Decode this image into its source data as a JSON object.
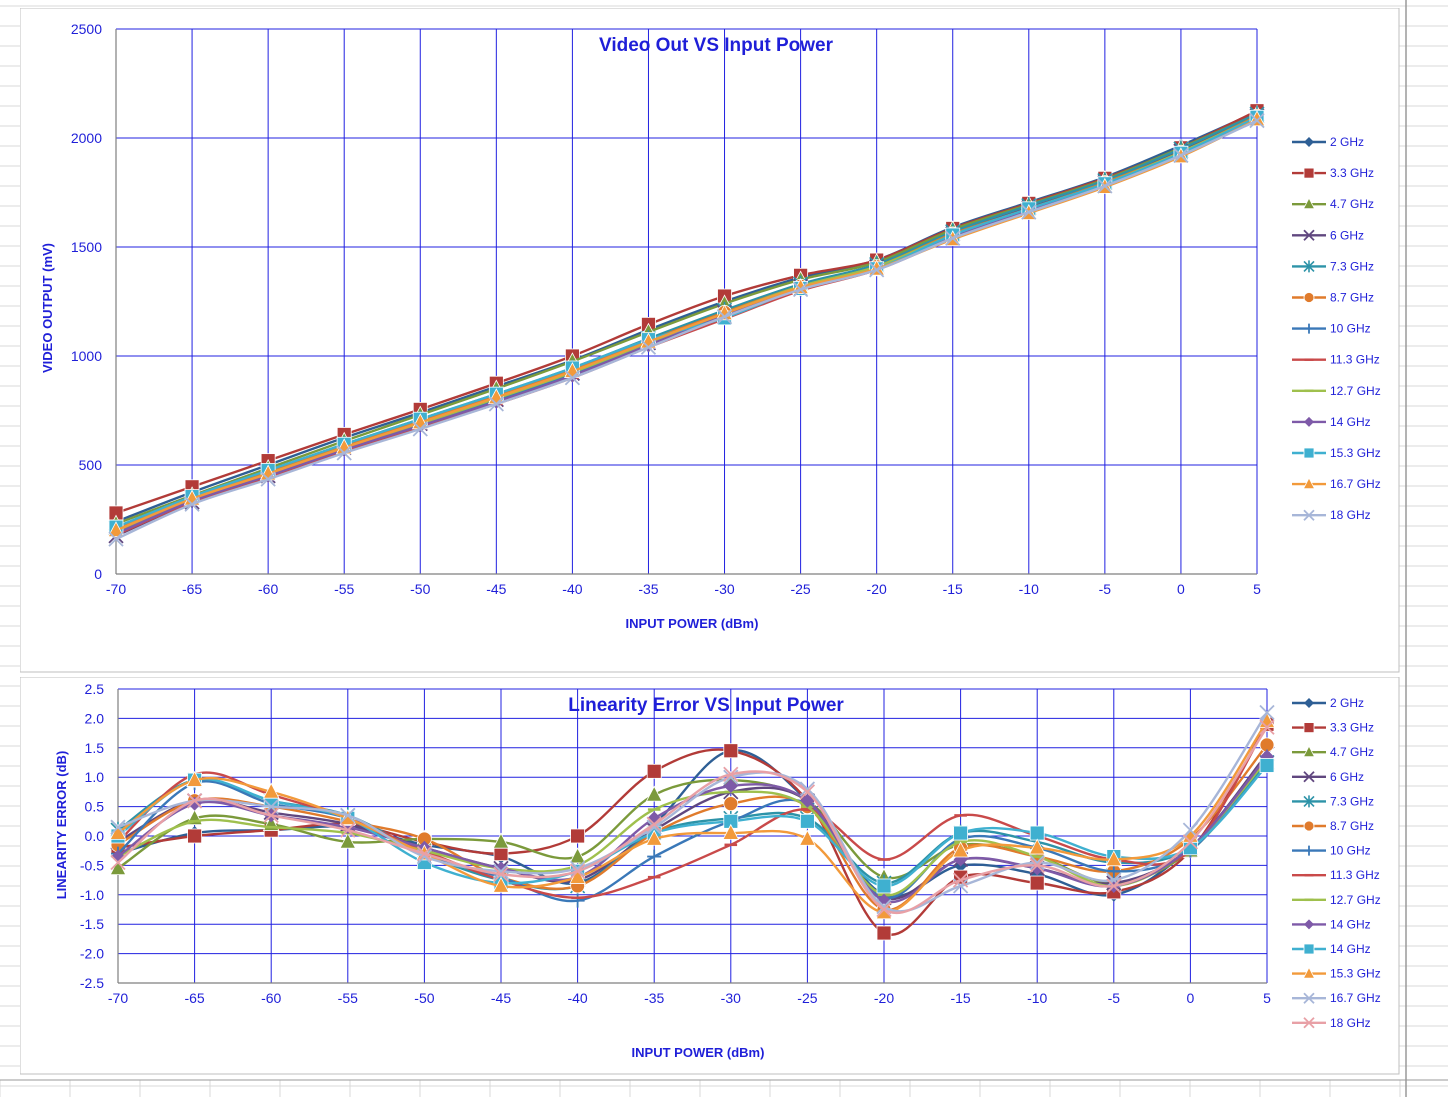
{
  "chart_data": [
    {
      "type": "line",
      "title": "Video Out VS Input Power",
      "xlabel": "INPUT POWER (dBm)",
      "ylabel": "VIDEO OUTPUT (mV)",
      "xlim": [
        -70,
        5
      ],
      "ylim": [
        0,
        2500
      ],
      "grid": true,
      "legend_position": "right",
      "x": [
        -70,
        -65,
        -60,
        -55,
        -50,
        -45,
        -40,
        -35,
        -30,
        -25,
        -20,
        -15,
        -10,
        -5,
        0,
        5
      ],
      "x_ticks": [
        "-70",
        "-65",
        "-60",
        "-55",
        "-50",
        "-45",
        "-40",
        "-35",
        "-30",
        "-25",
        "-20",
        "-15",
        "-10",
        "-5",
        "0",
        "5"
      ],
      "y_ticks": [
        "0",
        "500",
        "1000",
        "1500",
        "2000",
        "2500"
      ],
      "series": [
        {
          "name": "2 GHz",
          "color": "#2e5f95",
          "marker": "diamond",
          "values": [
            240,
            375,
            500,
            625,
            740,
            860,
            980,
            1120,
            1250,
            1360,
            1440,
            1590,
            1705,
            1820,
            1965,
            2120
          ]
        },
        {
          "name": "3.3 GHz",
          "color": "#b23b38",
          "marker": "square",
          "values": [
            280,
            400,
            520,
            640,
            755,
            875,
            1000,
            1145,
            1275,
            1370,
            1440,
            1585,
            1700,
            1815,
            1955,
            2125
          ]
        },
        {
          "name": "4.7 GHz",
          "color": "#7b9a3b",
          "marker": "triangle",
          "values": [
            230,
            360,
            485,
            610,
            730,
            850,
            975,
            1110,
            1240,
            1350,
            1430,
            1580,
            1695,
            1810,
            1955,
            2110
          ]
        },
        {
          "name": "6 GHz",
          "color": "#60477f",
          "marker": "x",
          "values": [
            175,
            330,
            450,
            580,
            690,
            800,
            920,
            1060,
            1200,
            1320,
            1410,
            1560,
            1680,
            1795,
            1940,
            2100
          ]
        },
        {
          "name": "7.3 GHz",
          "color": "#2d93a8",
          "marker": "star",
          "values": [
            210,
            350,
            470,
            595,
            710,
            825,
            945,
            1080,
            1210,
            1330,
            1420,
            1570,
            1690,
            1805,
            1950,
            2110
          ]
        },
        {
          "name": "8.7 GHz",
          "color": "#e07b2c",
          "marker": "circle",
          "values": [
            205,
            345,
            465,
            590,
            700,
            815,
            935,
            1070,
            1200,
            1320,
            1410,
            1560,
            1675,
            1795,
            1935,
            2100
          ]
        },
        {
          "name": "10 GHz",
          "color": "#3a78b8",
          "marker": "plus",
          "values": [
            190,
            335,
            455,
            575,
            685,
            795,
            915,
            1050,
            1180,
            1305,
            1400,
            1545,
            1665,
            1785,
            1925,
            2090
          ]
        },
        {
          "name": "11.3 GHz",
          "color": "#c94a4a",
          "marker": "dash",
          "values": [
            180,
            330,
            440,
            560,
            670,
            780,
            900,
            1040,
            1170,
            1300,
            1395,
            1540,
            1660,
            1780,
            1920,
            2085
          ]
        },
        {
          "name": "12.7 GHz",
          "color": "#9fc04d",
          "marker": "dash",
          "values": [
            195,
            340,
            460,
            580,
            690,
            805,
            925,
            1060,
            1195,
            1320,
            1410,
            1555,
            1675,
            1790,
            1935,
            2095
          ]
        },
        {
          "name": "14 GHz",
          "color": "#7e5aa8",
          "marker": "diamond",
          "values": [
            185,
            335,
            450,
            570,
            680,
            790,
            910,
            1050,
            1185,
            1310,
            1400,
            1545,
            1665,
            1785,
            1925,
            2090
          ]
        },
        {
          "name": "15.3 GHz",
          "color": "#3fb0d0",
          "marker": "square",
          "values": [
            215,
            355,
            475,
            595,
            710,
            825,
            945,
            1075,
            1175,
            1310,
            1400,
            1555,
            1675,
            1790,
            1930,
            2095
          ]
        },
        {
          "name": "16.7 GHz",
          "color": "#f29a3b",
          "marker": "triangle",
          "values": [
            200,
            345,
            460,
            580,
            695,
            810,
            930,
            1065,
            1195,
            1315,
            1400,
            1535,
            1655,
            1775,
            1915,
            2085
          ]
        },
        {
          "name": "18 GHz",
          "color": "#a7b6d8",
          "marker": "x",
          "values": [
            160,
            320,
            435,
            555,
            665,
            780,
            900,
            1040,
            1180,
            1305,
            1395,
            1540,
            1660,
            1780,
            1920,
            2080
          ]
        }
      ]
    },
    {
      "type": "line",
      "title": "Linearity Error VS Input Power",
      "xlabel": "INPUT POWER (dBm)",
      "ylabel": "LINEARITY ERROR (dB)",
      "xlim": [
        -70,
        5
      ],
      "ylim": [
        -2.5,
        2.5
      ],
      "grid": true,
      "legend_position": "right",
      "x": [
        -70,
        -65,
        -60,
        -55,
        -50,
        -45,
        -40,
        -35,
        -30,
        -25,
        -20,
        -15,
        -10,
        -5,
        0,
        5
      ],
      "x_ticks": [
        "-70",
        "-65",
        "-60",
        "-55",
        "-50",
        "-45",
        "-40",
        "-35",
        "-30",
        "-25",
        "-20",
        "-15",
        "-10",
        "-5",
        "0",
        "5"
      ],
      "y_ticks": [
        "-2.5",
        "-2.0",
        "-1.5",
        "-1.0",
        "-0.5",
        "0.0",
        "0.5",
        "1.0",
        "1.5",
        "2.0",
        "2.5"
      ],
      "series": [
        {
          "name": "2 GHz",
          "color": "#2e5f95",
          "marker": "diamond",
          "values": [
            -0.3,
            0.05,
            0.1,
            0.15,
            -0.15,
            -0.35,
            -0.8,
            0.2,
            1.45,
            0.6,
            -1.0,
            -0.5,
            -0.65,
            -1.0,
            -0.2,
            1.3
          ]
        },
        {
          "name": "3.3 GHz",
          "color": "#b23b38",
          "marker": "square",
          "values": [
            -0.2,
            0.0,
            0.1,
            0.2,
            -0.1,
            -0.3,
            0.0,
            1.1,
            1.45,
            0.6,
            -1.65,
            -0.7,
            -0.8,
            -0.95,
            -0.25,
            1.9
          ]
        },
        {
          "name": "4.7 GHz",
          "color": "#7b9a3b",
          "marker": "triangle",
          "values": [
            -0.55,
            0.3,
            0.2,
            -0.1,
            -0.05,
            -0.1,
            -0.35,
            0.7,
            0.95,
            0.6,
            -0.7,
            -0.15,
            -0.35,
            -0.8,
            -0.25,
            1.25
          ]
        },
        {
          "name": "6 GHz",
          "color": "#60477f",
          "marker": "x",
          "values": [
            -0.1,
            0.6,
            0.4,
            0.2,
            -0.2,
            -0.55,
            -0.75,
            0.1,
            0.75,
            0.6,
            -1.05,
            -0.4,
            -0.55,
            -0.8,
            -0.2,
            1.4
          ]
        },
        {
          "name": "7.3 GHz",
          "color": "#2d93a8",
          "marker": "star",
          "values": [
            0.1,
            0.95,
            0.6,
            0.35,
            -0.3,
            -0.75,
            -0.85,
            0.05,
            0.3,
            0.3,
            -0.8,
            0.05,
            -0.1,
            -0.45,
            -0.2,
            1.25
          ]
        },
        {
          "name": "8.7 GHz",
          "color": "#e07b2c",
          "marker": "circle",
          "values": [
            -0.15,
            0.6,
            0.5,
            0.25,
            -0.05,
            -0.7,
            -0.85,
            0.05,
            0.55,
            0.5,
            -1.25,
            -0.2,
            -0.35,
            -0.6,
            -0.05,
            1.55
          ]
        },
        {
          "name": "10 GHz",
          "color": "#3a78b8",
          "marker": "plus",
          "values": [
            -0.3,
            0.9,
            0.55,
            0.3,
            -0.3,
            -0.7,
            -1.1,
            -0.35,
            0.25,
            0.55,
            -1.05,
            -0.05,
            -0.2,
            -0.6,
            -0.25,
            1.35
          ]
        },
        {
          "name": "11.3 GHz",
          "color": "#c94a4a",
          "marker": "dash",
          "values": [
            -0.1,
            1.05,
            0.7,
            0.3,
            -0.25,
            -0.75,
            -1.05,
            -0.7,
            -0.15,
            0.45,
            -0.4,
            0.35,
            0.0,
            -0.4,
            -0.25,
            1.9
          ]
        },
        {
          "name": "12.7 GHz",
          "color": "#9fc04d",
          "marker": "dash",
          "values": [
            -0.35,
            0.25,
            0.15,
            0.05,
            -0.25,
            -0.55,
            -0.5,
            0.45,
            0.75,
            0.5,
            -1.0,
            -0.1,
            -0.35,
            -0.85,
            -0.2,
            1.3
          ]
        },
        {
          "name": "14 GHz",
          "color": "#7e5aa8",
          "marker": "diamond",
          "values": [
            -0.35,
            0.55,
            0.35,
            0.15,
            -0.2,
            -0.55,
            -0.7,
            0.3,
            0.85,
            0.6,
            -1.1,
            -0.4,
            -0.55,
            -0.85,
            -0.2,
            1.35
          ]
        },
        {
          "name": "14 GHz",
          "color": "#3fb0d0",
          "marker": "square",
          "values": [
            0.0,
            0.95,
            0.6,
            0.3,
            -0.45,
            -0.8,
            -0.6,
            0.05,
            0.25,
            0.25,
            -0.85,
            0.05,
            0.05,
            -0.35,
            -0.2,
            1.2
          ]
        },
        {
          "name": "15.3 GHz",
          "color": "#f29a3b",
          "marker": "triangle",
          "values": [
            0.05,
            0.95,
            0.75,
            0.3,
            -0.3,
            -0.85,
            -0.7,
            -0.05,
            0.05,
            -0.05,
            -1.3,
            -0.25,
            -0.2,
            -0.4,
            0.0,
            1.95
          ]
        },
        {
          "name": "16.7 GHz",
          "color": "#a7b6d8",
          "marker": "x",
          "values": [
            0.15,
            0.6,
            0.5,
            0.35,
            -0.35,
            -0.6,
            -0.55,
            0.15,
            1.0,
            0.8,
            -1.2,
            -0.85,
            -0.45,
            -0.75,
            0.1,
            2.1
          ]
        },
        {
          "name": "18 GHz",
          "color": "#e8a0a6",
          "marker": "x",
          "values": [
            -0.45,
            0.6,
            0.35,
            0.1,
            -0.3,
            -0.65,
            -0.6,
            0.2,
            1.05,
            0.75,
            -1.25,
            -0.75,
            -0.5,
            -0.85,
            -0.1,
            1.85
          ]
        }
      ]
    }
  ]
}
